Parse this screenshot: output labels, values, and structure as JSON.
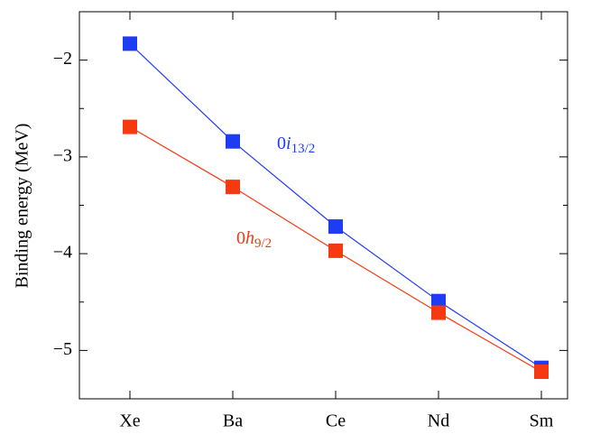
{
  "chart_data": {
    "type": "line",
    "ylabel": "Binding energy (MeV)",
    "categories": [
      "Xe",
      "Ba",
      "Ce",
      "Nd",
      "Sm"
    ],
    "series": [
      {
        "label": [
          "0",
          "i",
          "13/2"
        ],
        "color": "#1f3cf5",
        "values": [
          -1.83,
          -2.84,
          -3.72,
          -4.49,
          -5.18
        ]
      },
      {
        "label": [
          "0",
          "h",
          "9/2"
        ],
        "color": "#f53a12",
        "values": [
          -2.69,
          -3.31,
          -3.97,
          -4.61,
          -5.22
        ]
      }
    ],
    "ylim": [
      -5.5,
      -1.5
    ],
    "yticks": [
      {
        "value": -2,
        "label": "−2"
      },
      {
        "value": -3,
        "label": "−3"
      },
      {
        "value": -4,
        "label": "−4"
      },
      {
        "value": -5,
        "label": "−5"
      }
    ],
    "yminorticks": [
      -2.5,
      -3.5,
      -4.5
    ],
    "grid": false
  }
}
